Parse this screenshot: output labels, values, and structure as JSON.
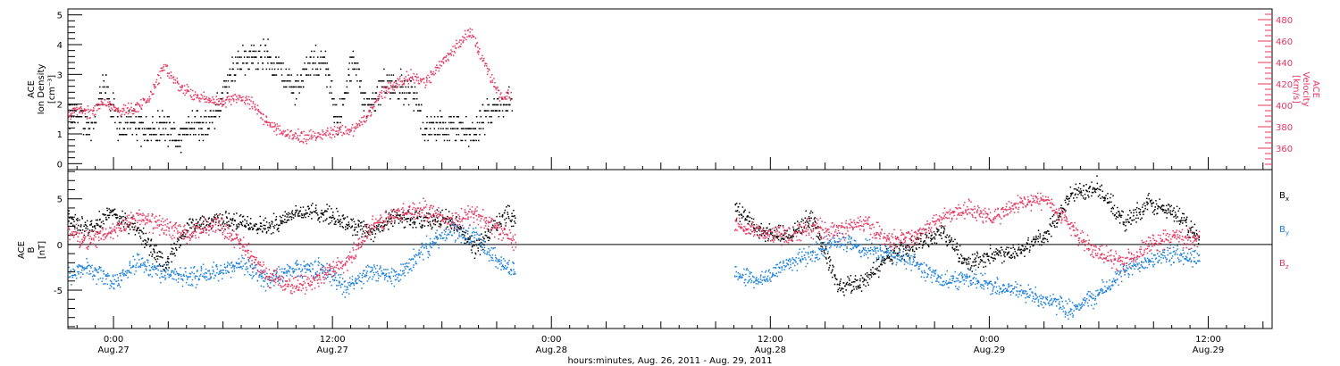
{
  "chart_data": [
    {
      "type": "scatter",
      "panel": "top",
      "ylabel_left": [
        "ACE",
        "Ion Density",
        "[cm⁻³]"
      ],
      "ylabel_right": [
        "ACE",
        "Velocity",
        "[km/s]"
      ],
      "ylim_left": [
        -0.2,
        5.2
      ],
      "ylim_right": [
        340,
        490
      ],
      "yticks_left": [
        "0",
        "1",
        "2",
        "3",
        "4",
        "5"
      ],
      "yticks_right": [
        "360",
        "380",
        "400",
        "420",
        "440",
        "460",
        "480"
      ],
      "grid": false,
      "series": [
        {
          "color": "#000000",
          "axis": "left",
          "x": [
            -6,
            -4,
            -2,
            0,
            2,
            4,
            6,
            8,
            10,
            12,
            14,
            16,
            18,
            20,
            22,
            24,
            26,
            28,
            30,
            32,
            34,
            36,
            38,
            40,
            42,
            44,
            46,
            48,
            50,
            52,
            54,
            56,
            58
          ],
          "y": [
            1.5,
            1.7,
            1.2,
            2.6,
            1.1,
            1.5,
            1.0,
            1.3,
            0.8,
            1.5,
            1.2,
            2.2,
            3.4,
            3.6,
            3.7,
            3.2,
            2.5,
            3.3,
            3.5,
            1.4,
            3.5,
            1.8,
            2.7,
            2.6,
            2.5,
            1.2,
            1.2,
            1.2,
            1.0,
            1.5,
            2.0,
            2.2,
            1.5
          ]
        },
        {
          "color": "#e8345f",
          "axis": "right",
          "x": [
            -6,
            -4,
            -2,
            0,
            2,
            4,
            6,
            8,
            10,
            12,
            14,
            16,
            18,
            20,
            22,
            24,
            26,
            28,
            30,
            32,
            34,
            36,
            38,
            40,
            42,
            44,
            46,
            48,
            50,
            52,
            54,
            56,
            58
          ],
          "y": [
            386,
            396,
            394,
            404,
            396,
            398,
            406,
            436,
            420,
            410,
            406,
            403,
            409,
            403,
            386,
            376,
            372,
            371,
            374,
            377,
            378,
            390,
            413,
            422,
            428,
            422,
            440,
            454,
            470,
            440,
            410,
            410,
            392
          ]
        }
      ]
    },
    {
      "type": "scatter",
      "panel": "bottom",
      "ylabel": [
        "ACE",
        "B",
        "[nT]"
      ],
      "ylim": [
        -9.2,
        8.2
      ],
      "yticks": [
        "-5",
        "0",
        "5"
      ],
      "grid": false,
      "legend": [
        "B",
        "B",
        "B"
      ],
      "legend_sub": [
        "x",
        "y",
        "z"
      ],
      "legend_position": "right",
      "series": [
        {
          "color": "#000000",
          "x": [
            -6,
            -4,
            -2,
            0,
            2,
            4,
            6,
            8,
            10,
            12,
            14,
            16,
            18,
            20,
            22,
            24,
            26,
            28,
            30,
            32,
            34,
            36,
            38,
            40,
            42,
            44,
            46,
            48,
            50,
            52,
            54,
            56,
            58,
            60,
            62,
            64,
            66,
            68,
            70,
            72,
            74,
            76,
            78,
            80,
            82,
            84,
            86,
            88
          ],
          "y": [
            3.5,
            3.2,
            3.0,
            2.0,
            3.5,
            1.5,
            -2.0,
            2.0,
            2.8,
            2.4,
            2.0,
            3.5,
            3.6,
            2.5,
            1.5,
            3.2,
            2.5,
            3.0,
            -0.5,
            3.0,
            3.5,
            3.8,
            2.4,
            0.0,
            -2.0,
            -0.5,
            3.0,
            5.5,
            4.2,
            1.5,
            1.0,
            3.0,
            -4.5,
            -4.0,
            -1.0,
            0.0,
            1.5,
            -2.0,
            -1.0,
            -0.5,
            1.0,
            5.5,
            6.5,
            2.5,
            4.5,
            3.5,
            0.5,
            -2.5
          ]
        },
        {
          "color": "#1a80dd",
          "x": [
            -6,
            -4,
            -2,
            0,
            2,
            4,
            6,
            8,
            10,
            12,
            14,
            16,
            18,
            20,
            22,
            24,
            26,
            28,
            30,
            32,
            34,
            36,
            38,
            40,
            42,
            44,
            46,
            48,
            50,
            52,
            54,
            56,
            58,
            60,
            62,
            64,
            66,
            68,
            70,
            72,
            74,
            76,
            78,
            80,
            82,
            84,
            86,
            88
          ],
          "y": [
            0.5,
            -1.5,
            -3.5,
            -2.5,
            -4.0,
            -2.0,
            -3.0,
            -3.5,
            -3.0,
            -2.0,
            -4.0,
            -2.5,
            -2.5,
            -4.5,
            -3.0,
            -3.5,
            -0.5,
            1.5,
            1.0,
            -2.0,
            -3.5,
            -2.0,
            -3.5,
            -3.0,
            -4.0,
            -2.0,
            -3.5,
            -2.5,
            -3.0,
            -4.0,
            -2.0,
            -1.0,
            0.5,
            -0.5,
            -1.0,
            -2.0,
            -4.0,
            -3.5,
            -4.5,
            -5.0,
            -6.0,
            -7.0,
            -5.5,
            -3.0,
            -1.5,
            -1.0,
            -1.5,
            -0.5
          ]
        },
        {
          "color": "#e8345f",
          "x": [
            -6,
            -4,
            -2,
            0,
            2,
            4,
            6,
            8,
            10,
            12,
            14,
            16,
            18,
            20,
            22,
            24,
            26,
            28,
            30,
            32,
            34,
            36,
            38,
            40,
            42,
            44,
            46,
            48,
            50,
            52,
            54,
            56,
            58,
            60,
            62,
            64,
            66,
            68,
            70,
            72,
            74,
            76,
            78,
            80,
            82,
            84,
            86,
            88
          ],
          "y": [
            -2.5,
            -1.0,
            2.0,
            0.5,
            1.5,
            3.0,
            2.0,
            1.0,
            2.5,
            0.0,
            -3.5,
            -4.5,
            -3.5,
            -2.0,
            2.0,
            3.5,
            4.0,
            2.5,
            3.5,
            1.5,
            -1.0,
            -2.5,
            -3.0,
            -2.5,
            -1.0,
            0.5,
            2.5,
            3.5,
            2.0,
            1.5,
            1.0,
            2.0,
            1.5,
            2.5,
            0.5,
            1.0,
            3.0,
            4.0,
            3.0,
            4.5,
            5.0,
            2.0,
            -1.0,
            -2.0,
            0.0,
            1.0,
            0.5,
            0.0
          ]
        }
      ]
    }
  ],
  "time_axis": {
    "start_hours_note": "",
    "ticks": [
      {
        "time": "0:00",
        "date": "Aug.27"
      },
      {
        "time": "12:00",
        "date": "Aug.27"
      },
      {
        "time": "0:00",
        "date": "Aug.28"
      },
      {
        "time": "12:00",
        "date": "Aug.28"
      },
      {
        "time": "0:00",
        "date": "Aug.29"
      },
      {
        "time": "12:00",
        "date": "Aug.29"
      }
    ],
    "xlim": [
      "Aug. 26, 2011 ~21:30",
      "Aug. 29, 2011 ~24:00"
    ],
    "xlabel": "hours:minutes, Aug. 26, 2011 - Aug. 29, 2011"
  },
  "colors": {
    "black": "#000000",
    "pink": "#e8345f",
    "blue": "#1a80dd"
  }
}
